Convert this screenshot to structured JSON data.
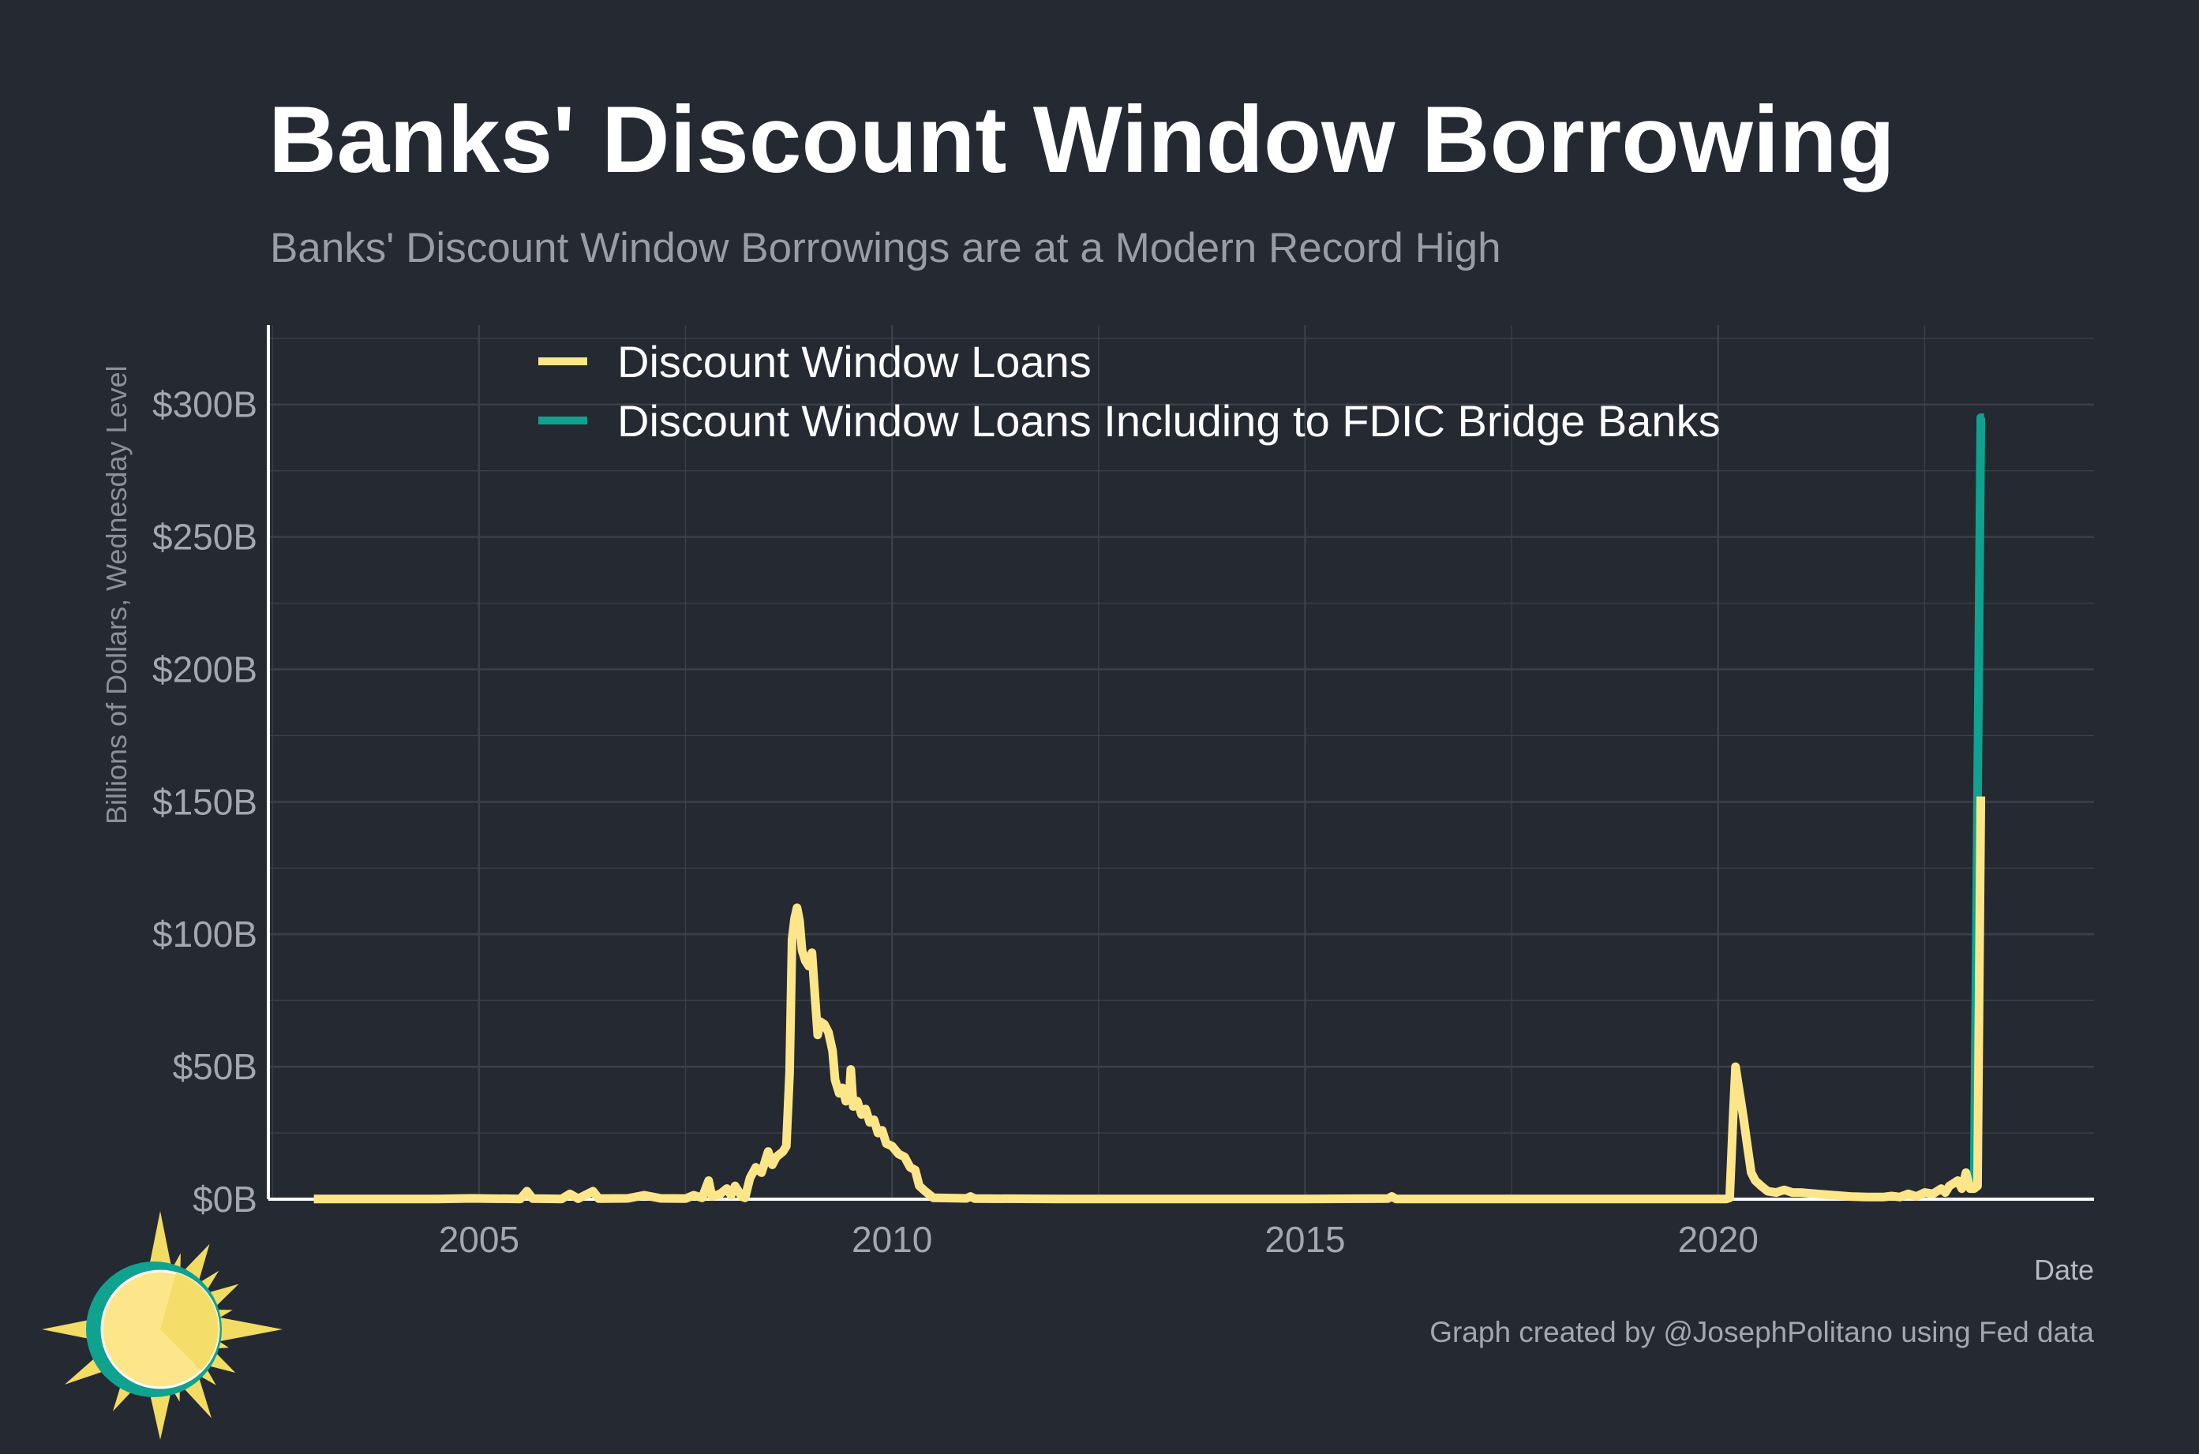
{
  "colors": {
    "background": "#252932",
    "grid": "#3b404a",
    "axis": "#ffffff",
    "series_1": "#fde68a",
    "series_2": "#0fa28f",
    "sun_yellow": "#f2dc63",
    "sun_light": "#fde68a",
    "sun_teal": "#0fa28f"
  },
  "logo_icon": "sun-icon",
  "caption": "Graph created by @JosephPolitano using Fed data",
  "chart_data": {
    "type": "line",
    "title": "Banks' Discount Window Borrowing",
    "subtitle": "Banks' Discount Window Borrowings are at a Modern Record High",
    "xlabel": "Date",
    "ylabel": "Billions of Dollars, Wednesday Level",
    "xlim": [
      2002.45,
      2024.55
    ],
    "ylim": [
      0,
      330
    ],
    "x_ticks": [
      2005,
      2010,
      2015,
      2020
    ],
    "x_tick_labels": [
      "2005",
      "2010",
      "2015",
      "2020"
    ],
    "y_ticks": [
      0,
      50,
      100,
      150,
      200,
      250,
      300
    ],
    "y_tick_labels": [
      "$0B",
      "$50B",
      "$100B",
      "$150B",
      "$200B",
      "$250B",
      "$300B"
    ],
    "grid": true,
    "legend_position": "top-left",
    "series": [
      {
        "name": "Discount Window Loans Including to FDIC Bridge Banks",
        "color": "#0fa28f",
        "points": [
          [
            2023.1,
            5
          ],
          [
            2023.18,
            295
          ],
          [
            2023.22,
            295
          ]
        ]
      },
      {
        "name": "Discount Window Loans",
        "color": "#fde68a",
        "points": [
          [
            2003.0,
            0.1
          ],
          [
            2003.5,
            0.1
          ],
          [
            2004.0,
            0.1
          ],
          [
            2004.5,
            0.1
          ],
          [
            2004.9,
            0.3
          ],
          [
            2005.5,
            0.1
          ],
          [
            2005.58,
            3
          ],
          [
            2005.65,
            0.2
          ],
          [
            2006.0,
            0.1
          ],
          [
            2006.1,
            2
          ],
          [
            2006.2,
            0.2
          ],
          [
            2006.38,
            3
          ],
          [
            2006.45,
            0.2
          ],
          [
            2006.8,
            0.3
          ],
          [
            2007.0,
            1.5
          ],
          [
            2007.2,
            0.3
          ],
          [
            2007.5,
            0.2
          ],
          [
            2007.6,
            1.5
          ],
          [
            2007.7,
            0.5
          ],
          [
            2007.78,
            7
          ],
          [
            2007.82,
            1
          ],
          [
            2007.92,
            2
          ],
          [
            2008.0,
            4
          ],
          [
            2008.05,
            1.5
          ],
          [
            2008.1,
            5
          ],
          [
            2008.18,
            1
          ],
          [
            2008.22,
            0.5
          ],
          [
            2008.28,
            8
          ],
          [
            2008.35,
            12
          ],
          [
            2008.42,
            10
          ],
          [
            2008.5,
            18
          ],
          [
            2008.55,
            13
          ],
          [
            2008.6,
            16
          ],
          [
            2008.68,
            18
          ],
          [
            2008.72,
            20
          ],
          [
            2008.76,
            48
          ],
          [
            2008.79,
            98
          ],
          [
            2008.82,
            106
          ],
          [
            2008.85,
            110
          ],
          [
            2008.88,
            105
          ],
          [
            2008.91,
            94
          ],
          [
            2008.95,
            90
          ],
          [
            2008.99,
            88
          ],
          [
            2009.03,
            93
          ],
          [
            2009.07,
            75
          ],
          [
            2009.1,
            62
          ],
          [
            2009.13,
            67
          ],
          [
            2009.18,
            66
          ],
          [
            2009.23,
            63
          ],
          [
            2009.28,
            56
          ],
          [
            2009.31,
            45
          ],
          [
            2009.36,
            40
          ],
          [
            2009.4,
            42
          ],
          [
            2009.44,
            37
          ],
          [
            2009.48,
            38
          ],
          [
            2009.5,
            49
          ],
          [
            2009.53,
            35
          ],
          [
            2009.58,
            37
          ],
          [
            2009.63,
            32
          ],
          [
            2009.68,
            34
          ],
          [
            2009.73,
            29
          ],
          [
            2009.78,
            30
          ],
          [
            2009.83,
            25
          ],
          [
            2009.88,
            26
          ],
          [
            2009.93,
            21
          ],
          [
            2010.0,
            20
          ],
          [
            2010.08,
            17
          ],
          [
            2010.15,
            16
          ],
          [
            2010.22,
            12
          ],
          [
            2010.28,
            11
          ],
          [
            2010.33,
            5
          ],
          [
            2010.4,
            3
          ],
          [
            2010.5,
            0.5
          ],
          [
            2010.9,
            0.3
          ],
          [
            2010.95,
            1
          ],
          [
            2011.0,
            0.2
          ],
          [
            2012.0,
            0.1
          ],
          [
            2013.0,
            0.1
          ],
          [
            2014.0,
            0.1
          ],
          [
            2015.0,
            0.1
          ],
          [
            2016.0,
            0.2
          ],
          [
            2016.05,
            1
          ],
          [
            2016.1,
            0.1
          ],
          [
            2017.0,
            0.1
          ],
          [
            2018.0,
            0.1
          ],
          [
            2019.0,
            0.1
          ],
          [
            2020.1,
            0.1
          ],
          [
            2020.14,
            0.5
          ],
          [
            2020.18,
            30
          ],
          [
            2020.21,
            50
          ],
          [
            2020.24,
            44
          ],
          [
            2020.27,
            38
          ],
          [
            2020.31,
            30
          ],
          [
            2020.35,
            21
          ],
          [
            2020.4,
            10
          ],
          [
            2020.45,
            7
          ],
          [
            2020.52,
            5
          ],
          [
            2020.6,
            3
          ],
          [
            2020.7,
            2.5
          ],
          [
            2020.8,
            3.5
          ],
          [
            2020.9,
            2.5
          ],
          [
            2021.0,
            2.5
          ],
          [
            2021.2,
            2
          ],
          [
            2021.4,
            1.5
          ],
          [
            2021.6,
            1
          ],
          [
            2021.8,
            0.8
          ],
          [
            2022.0,
            0.8
          ],
          [
            2022.1,
            1.2
          ],
          [
            2022.2,
            0.8
          ],
          [
            2022.3,
            2
          ],
          [
            2022.4,
            1
          ],
          [
            2022.5,
            2.5
          ],
          [
            2022.6,
            2
          ],
          [
            2022.7,
            4
          ],
          [
            2022.75,
            2.5
          ],
          [
            2022.8,
            5
          ],
          [
            2022.85,
            6
          ],
          [
            2022.9,
            7
          ],
          [
            2022.95,
            4
          ],
          [
            2023.0,
            10
          ],
          [
            2023.05,
            4
          ],
          [
            2023.1,
            4
          ],
          [
            2023.14,
            5
          ],
          [
            2023.18,
            152
          ]
        ]
      }
    ]
  }
}
